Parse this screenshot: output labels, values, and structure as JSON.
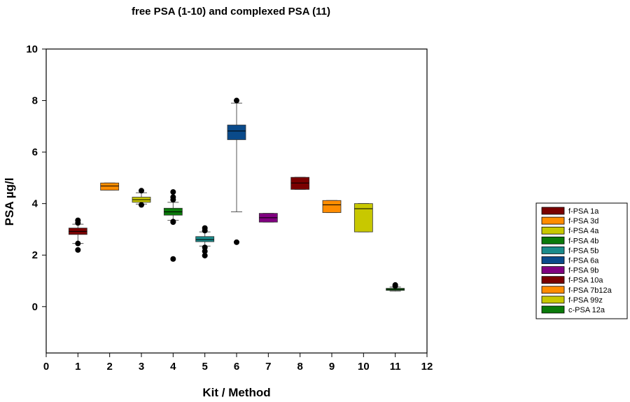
{
  "chart_data": {
    "type": "box",
    "title": "free PSA  (1-10)  and complexed PSA (11)",
    "xlabel": "Kit / Method",
    "ylabel": "PSA µg/l",
    "xlim": [
      0,
      12
    ],
    "ylim": [
      -1.8,
      10
    ],
    "xticks": [
      0,
      1,
      2,
      3,
      4,
      5,
      6,
      7,
      8,
      9,
      10,
      11,
      12
    ],
    "yticks": [
      0,
      2,
      4,
      6,
      8,
      10
    ],
    "legend_position": "right",
    "boxes": [
      {
        "x": 1,
        "name": "f-PSA 1a",
        "color": "#7a0000",
        "q1": 2.8,
        "median": 2.92,
        "q3": 3.05,
        "wlo": 2.45,
        "whi": 3.2,
        "outliers": [
          3.25,
          3.35,
          2.45,
          2.2
        ]
      },
      {
        "x": 2,
        "name": "f-PSA 3d",
        "color": "#ff8c00",
        "q1": 4.52,
        "median": 4.68,
        "q3": 4.8,
        "wlo": 4.52,
        "whi": 4.8,
        "outliers": []
      },
      {
        "x": 3,
        "name": "f-PSA 4a",
        "color": "#c8c800",
        "q1": 4.05,
        "median": 4.15,
        "q3": 4.25,
        "wlo": 3.98,
        "whi": 4.42,
        "outliers": [
          4.5,
          3.95
        ]
      },
      {
        "x": 4,
        "name": "f-PSA 4b",
        "color": "#0a7a0a",
        "q1": 3.55,
        "median": 3.68,
        "q3": 3.82,
        "wlo": 3.35,
        "whi": 4.05,
        "outliers": [
          4.45,
          4.25,
          4.15,
          3.3,
          3.28,
          1.85
        ]
      },
      {
        "x": 5,
        "name": "f-PSA 5b",
        "color": "#1a8a8a",
        "q1": 2.52,
        "median": 2.6,
        "q3": 2.72,
        "wlo": 2.35,
        "whi": 2.9,
        "outliers": [
          3.05,
          2.95,
          2.3,
          2.15,
          1.98
        ]
      },
      {
        "x": 6,
        "name": "f-PSA 6a",
        "color": "#0a4a8a",
        "q1": 6.48,
        "median": 6.82,
        "q3": 7.05,
        "wlo": 3.68,
        "whi": 7.9,
        "outliers": [
          8.0,
          2.5
        ]
      },
      {
        "x": 7,
        "name": "f-PSA 9b",
        "color": "#800080",
        "q1": 3.28,
        "median": 3.45,
        "q3": 3.62,
        "wlo": 3.28,
        "whi": 3.62,
        "outliers": []
      },
      {
        "x": 8,
        "name": "f-PSA 10a",
        "color": "#7a0000",
        "q1": 4.55,
        "median": 4.8,
        "q3": 5.02,
        "wlo": 4.55,
        "whi": 5.02,
        "outliers": []
      },
      {
        "x": 9,
        "name": "f-PSA 7b12a",
        "color": "#ff8c00",
        "q1": 3.65,
        "median": 3.95,
        "q3": 4.12,
        "wlo": 3.65,
        "whi": 4.12,
        "outliers": []
      },
      {
        "x": 10,
        "name": "f-PSA 99z",
        "color": "#c8c800",
        "q1": 2.9,
        "median": 3.8,
        "q3": 4.0,
        "wlo": 2.9,
        "whi": 4.0,
        "outliers": []
      },
      {
        "x": 11,
        "name": "c-PSA 12a",
        "color": "#0a7a0a",
        "q1": 0.63,
        "median": 0.67,
        "q3": 0.71,
        "wlo": 0.6,
        "whi": 0.76,
        "outliers": [
          0.84,
          0.8
        ]
      }
    ]
  }
}
